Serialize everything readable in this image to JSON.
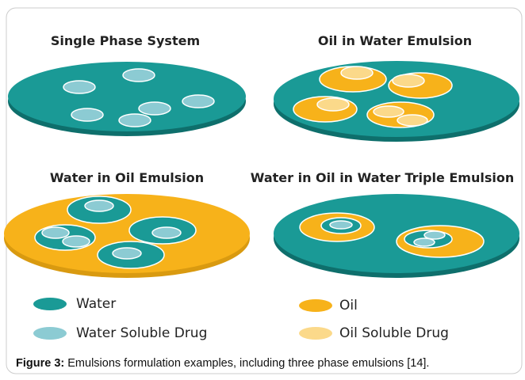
{
  "panels": [
    {
      "title": "Single Phase System"
    },
    {
      "title": "Oil in Water Emulsion"
    },
    {
      "title": "Water in Oil Emulsion"
    },
    {
      "title": "Water in Oil in Water Triple Emulsion"
    }
  ],
  "legend": [
    {
      "label": "Water"
    },
    {
      "label": "Water Soluble Drug"
    },
    {
      "label": "Oil"
    },
    {
      "label": "Oil Soluble Drug"
    }
  ],
  "caption": {
    "label": "Figure 3:",
    "text": "Emulsions formulation examples, including three phase emulsions [14]."
  }
}
